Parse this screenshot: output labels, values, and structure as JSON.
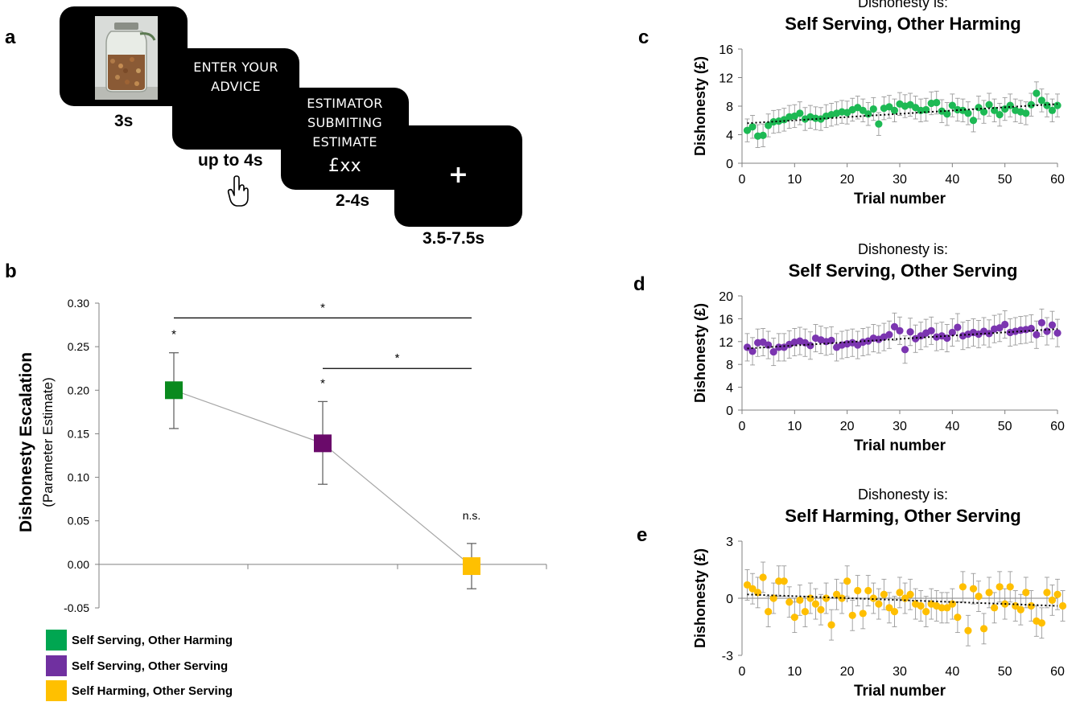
{
  "panels": {
    "a": "a",
    "b": "b",
    "c": "c",
    "d": "d",
    "e": "e"
  },
  "task": {
    "screens": [
      {
        "text_lines": [],
        "time": "3s"
      },
      {
        "text_lines": [
          "ENTER YOUR",
          "ADVICE"
        ],
        "time": "up to 4s"
      },
      {
        "text_lines": [
          "ESTIMATOR",
          "SUBMITING",
          "ESTIMATE"
        ],
        "amount": "£xx",
        "time": "2-4s"
      },
      {
        "text_lines": [
          "+"
        ],
        "time": "3.5-7.5s"
      }
    ]
  },
  "legend": [
    {
      "label": "Self Serving, Other Harming",
      "color": "#00a651"
    },
    {
      "label": "Self Serving, Other Serving",
      "color": "#7030a0"
    },
    {
      "label": "Self Harming, Other Serving",
      "color": "#ffc000"
    }
  ],
  "chart_data": [
    {
      "id": "b",
      "type": "line",
      "ylabel_main": "Dishonesty Escalation",
      "ylabel_sub": "(Parameter Estimate)",
      "ylim": [
        -0.05,
        0.3
      ],
      "yticks": [
        "0.30",
        "0.25",
        "0.20",
        "0.15",
        "0.10",
        "0.05",
        "0.00",
        "-0.05"
      ],
      "points": [
        {
          "name": "Self Serving, Other Harming",
          "value": 0.2,
          "err_low": 0.156,
          "err_high": 0.243,
          "color": "#0a8a1e",
          "sig": "*"
        },
        {
          "name": "Self Serving, Other Serving",
          "value": 0.139,
          "err_low": 0.092,
          "err_high": 0.187,
          "color": "#6a0a6a",
          "sig": "*"
        },
        {
          "name": "Self Harming, Other Serving",
          "value": -0.002,
          "err_low": -0.028,
          "err_high": 0.024,
          "color": "#ffc000",
          "sig": "n.s."
        }
      ],
      "brackets": [
        {
          "from": 0,
          "to": 2,
          "label": "*",
          "y": 0.283
        },
        {
          "from": 1,
          "to": 2,
          "label": "*",
          "y": 0.225
        }
      ]
    },
    {
      "id": "c",
      "type": "scatter",
      "title_small": "Dishonesty is:",
      "title": "Self Serving, Other Harming",
      "xlabel": "Trial number",
      "ylabel": "Dishonesty (£)",
      "xlim": [
        0,
        60
      ],
      "ylim": [
        0,
        16
      ],
      "xticks": [
        0,
        10,
        20,
        30,
        40,
        50,
        60
      ],
      "yticks": [
        0,
        4,
        8,
        12,
        16
      ],
      "color": "#1db954",
      "trend": [
        5.6,
        8.3
      ],
      "err": 1.6,
      "y": [
        4.6,
        5.1,
        3.8,
        3.9,
        5.3,
        5.8,
        5.9,
        6.1,
        6.5,
        6.6,
        7.0,
        6.2,
        6.5,
        6.3,
        6.2,
        6.6,
        6.8,
        7.0,
        7.2,
        7.1,
        7.5,
        7.8,
        7.4,
        6.9,
        7.6,
        5.5,
        7.7,
        7.9,
        7.4,
        8.3,
        8.0,
        8.2,
        7.8,
        7.4,
        7.5,
        8.4,
        8.5,
        7.3,
        6.9,
        8.1,
        7.5,
        7.4,
        7.0,
        6.0,
        7.8,
        7.2,
        8.2,
        7.4,
        6.8,
        7.6,
        8.1,
        7.4,
        7.2,
        7.0,
        8.2,
        9.8,
        8.8,
        8.1,
        7.4,
        8.1
      ]
    },
    {
      "id": "d",
      "type": "scatter",
      "title_small": "Dishonesty is:",
      "title": "Self Serving, Other Serving",
      "xlabel": "Trial number",
      "ylabel": "Dishonesty (£)",
      "xlim": [
        0,
        60
      ],
      "ylim": [
        0,
        20
      ],
      "xticks": [
        0,
        10,
        20,
        30,
        40,
        50,
        60
      ],
      "yticks": [
        0,
        4,
        8,
        12,
        16,
        20
      ],
      "color": "#7b35b0",
      "trend": [
        10.8,
        14.2
      ],
      "err": 2.4,
      "y": [
        11.0,
        10.3,
        11.8,
        11.9,
        11.4,
        10.2,
        11.0,
        11.0,
        11.5,
        11.9,
        12.1,
        11.8,
        11.3,
        12.6,
        12.3,
        12.0,
        12.2,
        11.0,
        11.4,
        11.6,
        11.8,
        11.4,
        11.9,
        12.1,
        12.6,
        12.4,
        12.8,
        13.2,
        14.6,
        13.9,
        10.6,
        13.7,
        12.5,
        13.0,
        13.5,
        13.9,
        12.8,
        13.0,
        12.6,
        13.6,
        14.5,
        13.0,
        13.3,
        13.6,
        13.3,
        13.8,
        13.4,
        14.2,
        14.4,
        15.0,
        13.6,
        13.8,
        14.0,
        14.1,
        14.3,
        13.2,
        15.3,
        13.8,
        14.9,
        13.5
      ]
    },
    {
      "id": "e",
      "type": "scatter",
      "title_small": "Dishonesty is:",
      "title": "Self Harming, Other Serving",
      "xlabel": "Trial number",
      "ylabel": "Dishonesty (£)",
      "xlim": [
        0,
        60
      ],
      "ylim": [
        -3,
        3
      ],
      "xticks": [
        0,
        10,
        20,
        30,
        40,
        50,
        60
      ],
      "yticks": [
        -3,
        0,
        3
      ],
      "color": "#ffbf00",
      "trend": [
        0.2,
        -0.4
      ],
      "err": 0.8,
      "y": [
        0.7,
        0.5,
        0.3,
        1.1,
        -0.7,
        0.0,
        0.9,
        0.9,
        -0.2,
        -1.0,
        -0.1,
        -0.7,
        0.0,
        -0.3,
        -0.6,
        0.0,
        -1.4,
        0.2,
        0.0,
        0.9,
        -0.9,
        0.4,
        -0.8,
        0.4,
        0.0,
        -0.3,
        0.2,
        -0.5,
        -0.7,
        0.3,
        0.0,
        0.2,
        -0.3,
        -0.4,
        -0.7,
        -0.3,
        -0.4,
        -0.5,
        -0.5,
        -0.3,
        -1.0,
        0.6,
        -1.7,
        0.5,
        0.1,
        -1.6,
        0.3,
        -0.5,
        0.6,
        -0.3,
        0.6,
        -0.4,
        -0.6,
        0.3,
        -0.4,
        -1.2,
        -1.3,
        0.3,
        -0.1,
        0.2,
        -0.4
      ]
    }
  ]
}
